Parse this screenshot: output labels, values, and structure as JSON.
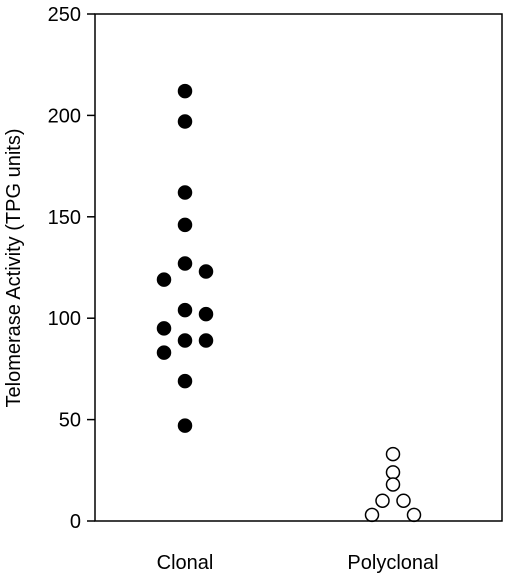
{
  "chart_data": {
    "type": "scatter",
    "title": "",
    "xlabel": "",
    "ylabel": "Telomerase Activity (TPG units)",
    "categories": [
      "Clonal",
      "Polyclonal"
    ],
    "ylim": [
      0,
      250
    ],
    "yticks": [
      0,
      50,
      100,
      150,
      200,
      250
    ],
    "grid": false,
    "series": [
      {
        "category": "Clonal",
        "marker": "filled-circle",
        "points": [
          {
            "offset": 0,
            "y": 212
          },
          {
            "offset": 0,
            "y": 197
          },
          {
            "offset": 0,
            "y": 162
          },
          {
            "offset": 0,
            "y": 146
          },
          {
            "offset": 0,
            "y": 127
          },
          {
            "offset": -1,
            "y": 119
          },
          {
            "offset": 1,
            "y": 123
          },
          {
            "offset": 0,
            "y": 104
          },
          {
            "offset": 1,
            "y": 102
          },
          {
            "offset": -1,
            "y": 95
          },
          {
            "offset": 0,
            "y": 89
          },
          {
            "offset": 1,
            "y": 89
          },
          {
            "offset": -1,
            "y": 83
          },
          {
            "offset": 0,
            "y": 69
          },
          {
            "offset": 0,
            "y": 47
          }
        ]
      },
      {
        "category": "Polyclonal",
        "marker": "open-circle",
        "points": [
          {
            "offset": 0,
            "y": 33
          },
          {
            "offset": 0,
            "y": 24
          },
          {
            "offset": 0,
            "y": 18
          },
          {
            "offset": -0.5,
            "y": 10
          },
          {
            "offset": 0.5,
            "y": 10
          },
          {
            "offset": -1,
            "y": 3
          },
          {
            "offset": 1,
            "y": 3
          }
        ]
      }
    ],
    "colors": {
      "axis": "#000000",
      "marker_fill": "#000000",
      "open_marker_fill": "#ffffff",
      "marker_stroke": "#000000"
    }
  }
}
